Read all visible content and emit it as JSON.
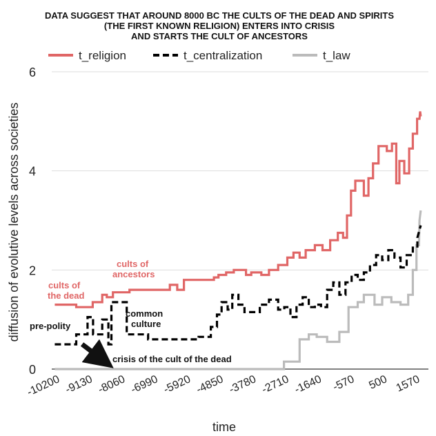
{
  "chart_data": {
    "type": "line",
    "title": [
      "DATA SUGGEST THAT AROUND 8000 BC THE CULTS OF THE DEAD AND SPIRITS",
      "(THE FIRST KNOWN RELIGION) ENTERS INTO CRISIS",
      "AND STARTS THE CULT OF ANCESTORS"
    ],
    "xlabel": "time",
    "ylabel": "diffusion of evolutive levels across societies",
    "xlim": [
      -10300,
      2010
    ],
    "ylim": [
      0,
      6
    ],
    "x_ticks": [
      "-10200",
      "-9130",
      "-8060",
      "-6990",
      "-5920",
      "-4850",
      "-3780",
      "-2710",
      "-1640",
      "-570",
      "500",
      "1570"
    ],
    "x_tick_values": [
      -10200,
      -9130,
      -8060,
      -6990,
      -5920,
      -4850,
      -3780,
      -2710,
      -1640,
      -570,
      500,
      1570
    ],
    "y_ticks": [
      "0",
      "2",
      "4",
      "6"
    ],
    "y_tick_values": [
      0,
      2,
      4,
      6
    ],
    "grid": "horizontal",
    "legend_position": "top",
    "series": [
      {
        "name": "t_religion",
        "color": "#e06666",
        "dash": "solid",
        "points": [
          [
            -10200,
            1.3
          ],
          [
            -9500,
            1.3
          ],
          [
            -9500,
            1.25
          ],
          [
            -8960,
            1.25
          ],
          [
            -8960,
            1.35
          ],
          [
            -8650,
            1.35
          ],
          [
            -8650,
            1.5
          ],
          [
            -8500,
            1.5
          ],
          [
            -8500,
            1.45
          ],
          [
            -8300,
            1.45
          ],
          [
            -8300,
            1.55
          ],
          [
            -7760,
            1.55
          ],
          [
            -7760,
            1.6
          ],
          [
            -7390,
            1.6
          ],
          [
            -7390,
            1.6
          ],
          [
            -6440,
            1.6
          ],
          [
            -6440,
            1.7
          ],
          [
            -6200,
            1.7
          ],
          [
            -6200,
            1.6
          ],
          [
            -5980,
            1.6
          ],
          [
            -5980,
            1.8
          ],
          [
            -5000,
            1.8
          ],
          [
            -5000,
            1.85
          ],
          [
            -4850,
            1.85
          ],
          [
            -4850,
            1.9
          ],
          [
            -4600,
            1.9
          ],
          [
            -4600,
            1.95
          ],
          [
            -4350,
            1.95
          ],
          [
            -4350,
            2.0
          ],
          [
            -3950,
            2.0
          ],
          [
            -3950,
            1.9
          ],
          [
            -3780,
            1.9
          ],
          [
            -3780,
            1.95
          ],
          [
            -3450,
            1.95
          ],
          [
            -3450,
            1.9
          ],
          [
            -3200,
            1.9
          ],
          [
            -3200,
            2.0
          ],
          [
            -2900,
            2.0
          ],
          [
            -2900,
            2.1
          ],
          [
            -2600,
            2.1
          ],
          [
            -2600,
            2.25
          ],
          [
            -2400,
            2.25
          ],
          [
            -2400,
            2.35
          ],
          [
            -2200,
            2.35
          ],
          [
            -2200,
            2.25
          ],
          [
            -2000,
            2.25
          ],
          [
            -2000,
            2.4
          ],
          [
            -1700,
            2.4
          ],
          [
            -1700,
            2.5
          ],
          [
            -1450,
            2.5
          ],
          [
            -1450,
            2.4
          ],
          [
            -1200,
            2.4
          ],
          [
            -1200,
            2.6
          ],
          [
            -950,
            2.6
          ],
          [
            -950,
            2.75
          ],
          [
            -780,
            2.75
          ],
          [
            -780,
            2.65
          ],
          [
            -650,
            2.65
          ],
          [
            -650,
            3.1
          ],
          [
            -520,
            3.1
          ],
          [
            -520,
            3.6
          ],
          [
            -380,
            3.6
          ],
          [
            -380,
            3.8
          ],
          [
            -100,
            3.8
          ],
          [
            -100,
            3.5
          ],
          [
            50,
            3.5
          ],
          [
            50,
            3.85
          ],
          [
            200,
            3.85
          ],
          [
            200,
            4.15
          ],
          [
            380,
            4.15
          ],
          [
            380,
            4.5
          ],
          [
            650,
            4.5
          ],
          [
            650,
            4.4
          ],
          [
            820,
            4.4
          ],
          [
            820,
            4.55
          ],
          [
            960,
            4.55
          ],
          [
            960,
            3.75
          ],
          [
            1060,
            3.75
          ],
          [
            1060,
            4.2
          ],
          [
            1220,
            4.2
          ],
          [
            1220,
            3.95
          ],
          [
            1380,
            3.95
          ],
          [
            1380,
            4.45
          ],
          [
            1500,
            4.45
          ],
          [
            1500,
            4.75
          ],
          [
            1640,
            4.75
          ],
          [
            1640,
            5.05
          ],
          [
            1720,
            5.05
          ],
          [
            1740,
            5.2
          ],
          [
            1760,
            5.1
          ]
        ]
      },
      {
        "name": "t_centralization",
        "color": "#000000",
        "dash": "dashed",
        "points": [
          [
            -10200,
            0.5
          ],
          [
            -9500,
            0.5
          ],
          [
            -9500,
            0.7
          ],
          [
            -9130,
            0.7
          ],
          [
            -9130,
            1.05
          ],
          [
            -8950,
            1.05
          ],
          [
            -8950,
            0.7
          ],
          [
            -8650,
            0.7
          ],
          [
            -8650,
            1.0
          ],
          [
            -8450,
            1.0
          ],
          [
            -8450,
            0.5
          ],
          [
            -8350,
            0.5
          ],
          [
            -8350,
            1.35
          ],
          [
            -7850,
            1.35
          ],
          [
            -7850,
            0.7
          ],
          [
            -7150,
            0.7
          ],
          [
            -7150,
            0.6
          ],
          [
            -5500,
            0.6
          ],
          [
            -5500,
            0.65
          ],
          [
            -5100,
            0.65
          ],
          [
            -5100,
            0.85
          ],
          [
            -4900,
            0.85
          ],
          [
            -4900,
            1.1
          ],
          [
            -4750,
            1.1
          ],
          [
            -4750,
            1.35
          ],
          [
            -4550,
            1.35
          ],
          [
            -4550,
            1.2
          ],
          [
            -4400,
            1.2
          ],
          [
            -4400,
            1.5
          ],
          [
            -4200,
            1.5
          ],
          [
            -4200,
            1.3
          ],
          [
            -4000,
            1.3
          ],
          [
            -4000,
            1.15
          ],
          [
            -3500,
            1.15
          ],
          [
            -3500,
            1.3
          ],
          [
            -3200,
            1.3
          ],
          [
            -3200,
            1.4
          ],
          [
            -2900,
            1.4
          ],
          [
            -2900,
            1.2
          ],
          [
            -2700,
            1.2
          ],
          [
            -2700,
            1.25
          ],
          [
            -2500,
            1.25
          ],
          [
            -2500,
            1.05
          ],
          [
            -2300,
            1.05
          ],
          [
            -2300,
            1.3
          ],
          [
            -2100,
            1.3
          ],
          [
            -2100,
            1.45
          ],
          [
            -1900,
            1.45
          ],
          [
            -1900,
            1.25
          ],
          [
            -1700,
            1.25
          ],
          [
            -1700,
            1.3
          ],
          [
            -1500,
            1.3
          ],
          [
            -1500,
            1.25
          ],
          [
            -1300,
            1.25
          ],
          [
            -1300,
            1.6
          ],
          [
            -1100,
            1.6
          ],
          [
            -1100,
            1.75
          ],
          [
            -900,
            1.75
          ],
          [
            -900,
            1.5
          ],
          [
            -700,
            1.5
          ],
          [
            -700,
            1.75
          ],
          [
            -500,
            1.75
          ],
          [
            -500,
            1.9
          ],
          [
            -300,
            1.9
          ],
          [
            -300,
            1.8
          ],
          [
            -100,
            1.8
          ],
          [
            -100,
            1.95
          ],
          [
            100,
            1.95
          ],
          [
            100,
            2.1
          ],
          [
            300,
            2.1
          ],
          [
            300,
            2.3
          ],
          [
            500,
            2.3
          ],
          [
            500,
            2.2
          ],
          [
            700,
            2.2
          ],
          [
            700,
            2.4
          ],
          [
            900,
            2.4
          ],
          [
            900,
            2.25
          ],
          [
            1100,
            2.25
          ],
          [
            1100,
            2.05
          ],
          [
            1300,
            2.05
          ],
          [
            1300,
            2.3
          ],
          [
            1500,
            2.3
          ],
          [
            1500,
            2.45
          ],
          [
            1650,
            2.45
          ],
          [
            1650,
            2.65
          ],
          [
            1760,
            2.9
          ]
        ]
      },
      {
        "name": "t_law",
        "color": "#bbbbbb",
        "dash": "solid",
        "points": [
          [
            -10200,
            0.0
          ],
          [
            -2710,
            0.0
          ],
          [
            -2710,
            0.15
          ],
          [
            -2200,
            0.15
          ],
          [
            -2200,
            0.6
          ],
          [
            -1900,
            0.6
          ],
          [
            -1900,
            0.7
          ],
          [
            -1640,
            0.7
          ],
          [
            -1640,
            0.65
          ],
          [
            -1300,
            0.65
          ],
          [
            -1300,
            0.55
          ],
          [
            -900,
            0.55
          ],
          [
            -900,
            0.75
          ],
          [
            -600,
            0.75
          ],
          [
            -600,
            1.25
          ],
          [
            -300,
            1.25
          ],
          [
            -300,
            1.35
          ],
          [
            -100,
            1.35
          ],
          [
            -100,
            1.5
          ],
          [
            250,
            1.5
          ],
          [
            250,
            1.3
          ],
          [
            500,
            1.3
          ],
          [
            500,
            1.45
          ],
          [
            800,
            1.45
          ],
          [
            800,
            1.35
          ],
          [
            1100,
            1.35
          ],
          [
            1100,
            1.3
          ],
          [
            1350,
            1.3
          ],
          [
            1350,
            1.5
          ],
          [
            1500,
            1.5
          ],
          [
            1500,
            2.0
          ],
          [
            1620,
            2.0
          ],
          [
            1620,
            2.5
          ],
          [
            1700,
            2.5
          ],
          [
            1720,
            3.0
          ],
          [
            1760,
            3.2
          ]
        ]
      }
    ],
    "annotations": [
      {
        "text": "cults of",
        "color": "#e06666"
      },
      {
        "text": "the dead",
        "color": "#e06666"
      },
      {
        "text": "cults of",
        "color": "#e06666"
      },
      {
        "text": "ancestors",
        "color": "#e06666"
      },
      {
        "text": "pre-polity",
        "color": "#111111"
      },
      {
        "text": "common",
        "color": "#111111"
      },
      {
        "text": "culture",
        "color": "#111111"
      },
      {
        "text": "crisis of the cult of the dead",
        "color": "#111111"
      }
    ]
  }
}
